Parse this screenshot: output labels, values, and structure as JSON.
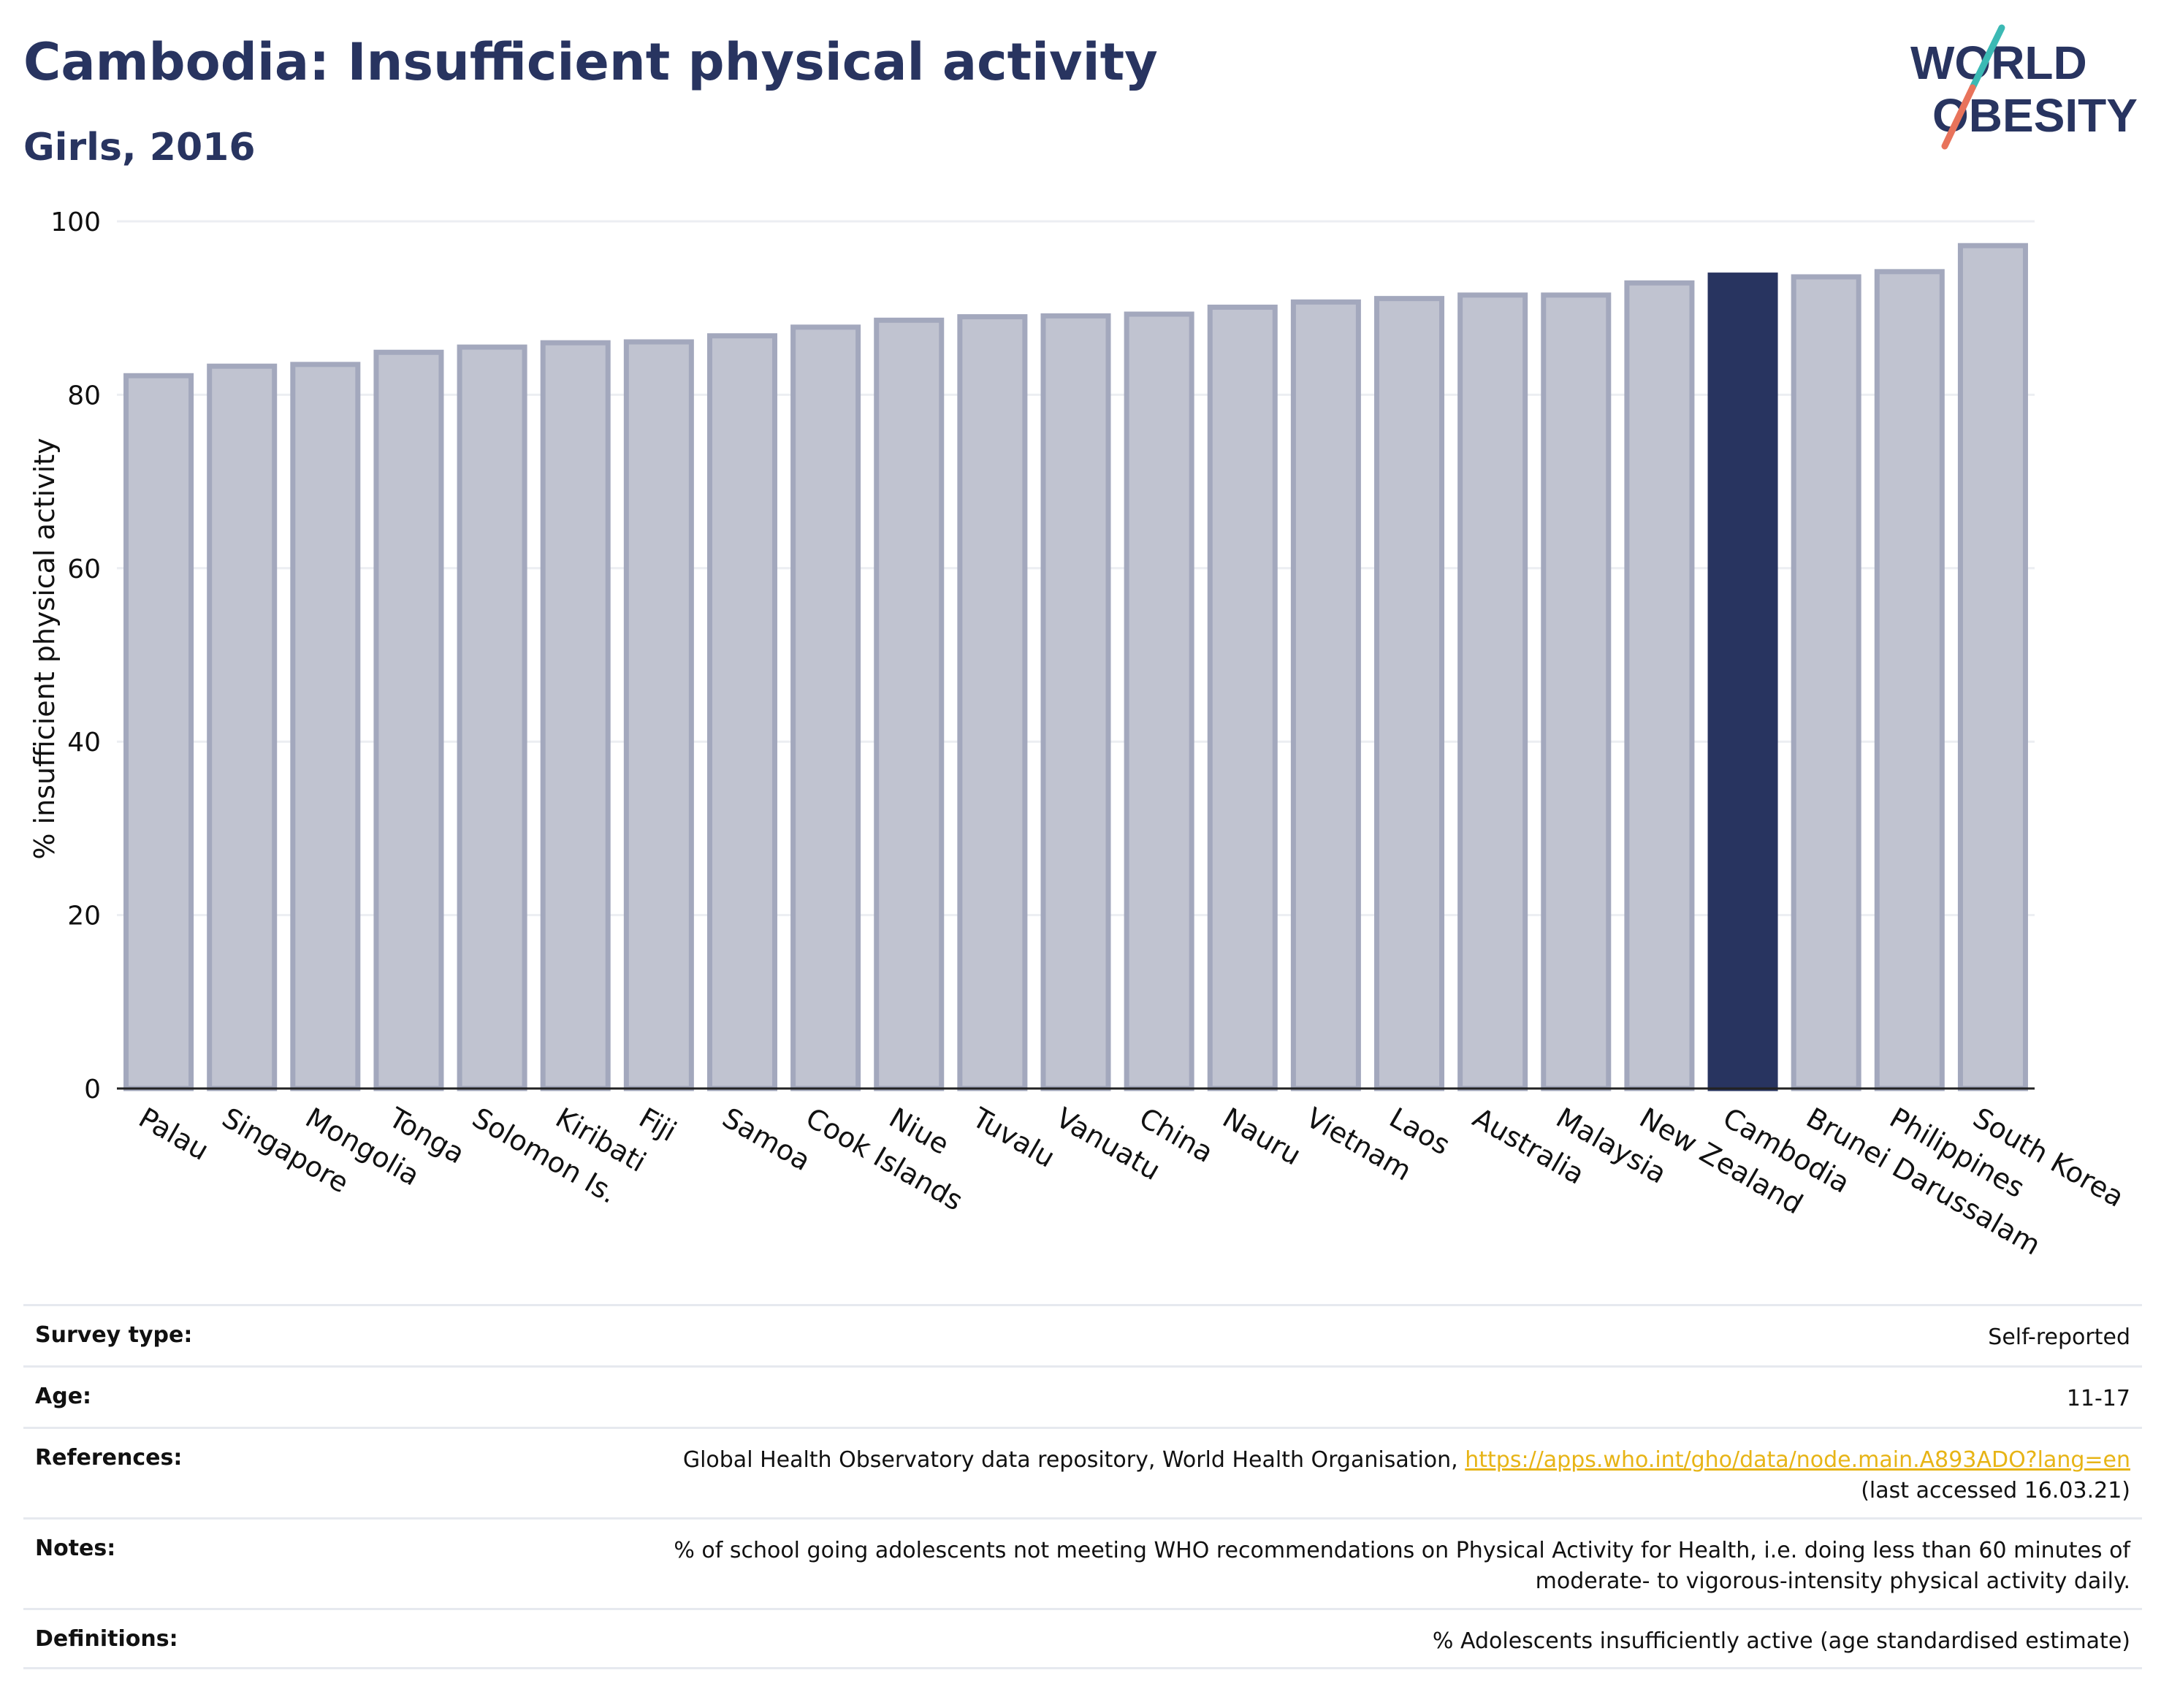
{
  "header": {
    "title": "Cambodia: Insufficient physical activity",
    "subtitle": "Girls, 2016"
  },
  "logo": {
    "line1": "WORLD",
    "line2": "OBESITY",
    "accent_top": "#3bb9b4",
    "accent_bottom": "#e8735b",
    "color": "#283460"
  },
  "chart_data": {
    "type": "bar",
    "title": "Cambodia: Insufficient physical activity",
    "subtitle": "Girls, 2016",
    "xlabel": "",
    "ylabel": "% insufficient physical activity",
    "ylim": [
      0,
      100
    ],
    "yticks": [
      0,
      20,
      40,
      60,
      80,
      100
    ],
    "grid": true,
    "highlight": "Cambodia",
    "bar_color": "#c0c3d0",
    "bar_edge_color": "#a3a8bd",
    "highlight_color": "#283460",
    "categories": [
      "Palau",
      "Singapore",
      "Mongolia",
      "Tonga",
      "Solomon Is.",
      "Kiribati",
      "Fiji",
      "Samoa",
      "Cook Islands",
      "Niue",
      "Tuvalu",
      "Vanuatu",
      "China",
      "Nauru",
      "Vietnam",
      "Laos",
      "Australia",
      "Malaysia",
      "New Zealand",
      "Cambodia",
      "Brunei Darussalam",
      "Philippines",
      "South Korea"
    ],
    "values": [
      82.2,
      83.3,
      83.5,
      84.9,
      85.5,
      86.0,
      86.1,
      86.8,
      87.8,
      88.6,
      89.0,
      89.1,
      89.3,
      90.1,
      90.7,
      91.1,
      91.5,
      91.5,
      92.9,
      93.8,
      93.6,
      94.2,
      97.2
    ]
  },
  "meta": [
    {
      "label": "Survey type:",
      "value": "Self-reported"
    },
    {
      "label": "Age:",
      "value": "11-17"
    },
    {
      "label": "References:",
      "value": "Global Health Observatory data repository, World Health Organisation,",
      "link": "https://apps.who.int/gho/data/node.main.A893ADO?lang=en",
      "value2": "(last accessed 16.03.21)"
    },
    {
      "label": "Notes:",
      "value": "% of school going adolescents not meeting WHO recommendations on Physical Activity for Health, i.e. doing less than 60 minutes of",
      "value2": "moderate- to vigorous-intensity physical activity daily."
    },
    {
      "label": "Definitions:",
      "value": "% Adolescents insufficiently active (age standardised estimate)"
    }
  ]
}
